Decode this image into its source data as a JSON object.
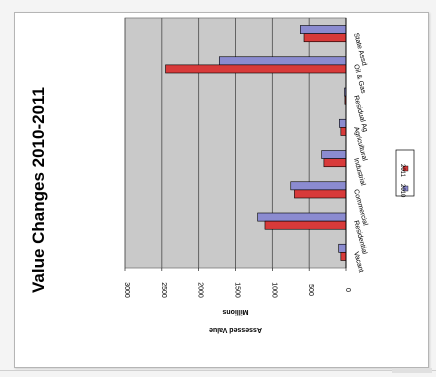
{
  "chart_data": {
    "type": "bar",
    "orientation": "horizontal",
    "rotation": "90deg clockwise",
    "title": "Value Changes 2010-2011",
    "xlabel": "",
    "ylabel": "Assessed Value",
    "ylabel_sub": "Millions",
    "ylim": [
      0,
      3000
    ],
    "yticks": [
      0,
      500,
      1000,
      1500,
      2000,
      2500,
      3000
    ],
    "grid": true,
    "legend_position": "right",
    "categories": [
      "Vacant",
      "Residential",
      "Commercial",
      "Industrial",
      "Agricultural",
      "Residual Ag",
      "Oil & Gas",
      "State Assd"
    ],
    "series": [
      {
        "name": "2010",
        "color": "#8b8bd0",
        "values": [
          100,
          1200,
          750,
          330,
          90,
          20,
          1720,
          620
        ]
      },
      {
        "name": "2011",
        "color": "#d83a3a",
        "values": [
          70,
          1100,
          700,
          300,
          70,
          15,
          2450,
          570
        ]
      }
    ],
    "colors": {
      "plot_bg": "#c9c9c9",
      "bar_border": "#000000"
    }
  }
}
